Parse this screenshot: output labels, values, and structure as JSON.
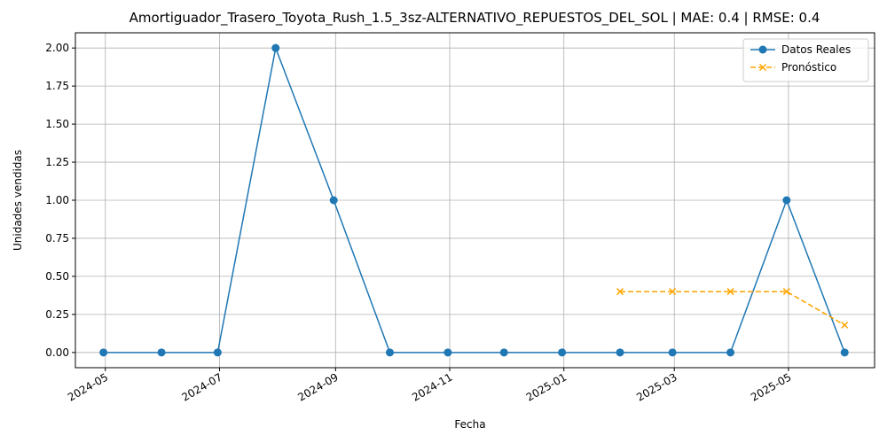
{
  "chart_data": {
    "type": "line",
    "title": "Amortiguador_Trasero_Toyota_Rush_1.5_3sz-ALTERNATIVO_REPUESTOS_DEL_SOL | MAE: 0.4 | RMSE: 0.4",
    "xlabel": "Fecha",
    "ylabel": "Unidades vendidas",
    "xlim": [
      "2024-04-15",
      "2025-06-16"
    ],
    "ylim": [
      -0.1,
      2.1
    ],
    "grid": true,
    "legend_position": "top-right",
    "x_ticks": [
      "2024-05",
      "2024-07",
      "2024-09",
      "2024-11",
      "2025-01",
      "2025-03",
      "2025-05"
    ],
    "y_ticks": [
      "0.00",
      "0.25",
      "0.50",
      "0.75",
      "1.00",
      "1.25",
      "1.50",
      "1.75",
      "2.00"
    ],
    "series": [
      {
        "name": "Datos Reales",
        "color": "#1f77b4",
        "marker": "circle",
        "line_style": "solid",
        "x": [
          "2024-04-30",
          "2024-05-31",
          "2024-06-30",
          "2024-07-31",
          "2024-08-31",
          "2024-09-30",
          "2024-10-31",
          "2024-11-30",
          "2024-12-31",
          "2025-01-31",
          "2025-02-28",
          "2025-03-31",
          "2025-04-30",
          "2025-05-31"
        ],
        "y": [
          0,
          0,
          0,
          2,
          1,
          0,
          0,
          0,
          0,
          0,
          0,
          0,
          1,
          0
        ]
      },
      {
        "name": "Pronóstico",
        "color": "#ffa500",
        "marker": "x",
        "line_style": "dashed",
        "x": [
          "2025-01-31",
          "2025-02-28",
          "2025-03-31",
          "2025-04-30",
          "2025-05-31"
        ],
        "y": [
          0.4,
          0.4,
          0.4,
          0.4,
          0.18
        ]
      }
    ]
  }
}
